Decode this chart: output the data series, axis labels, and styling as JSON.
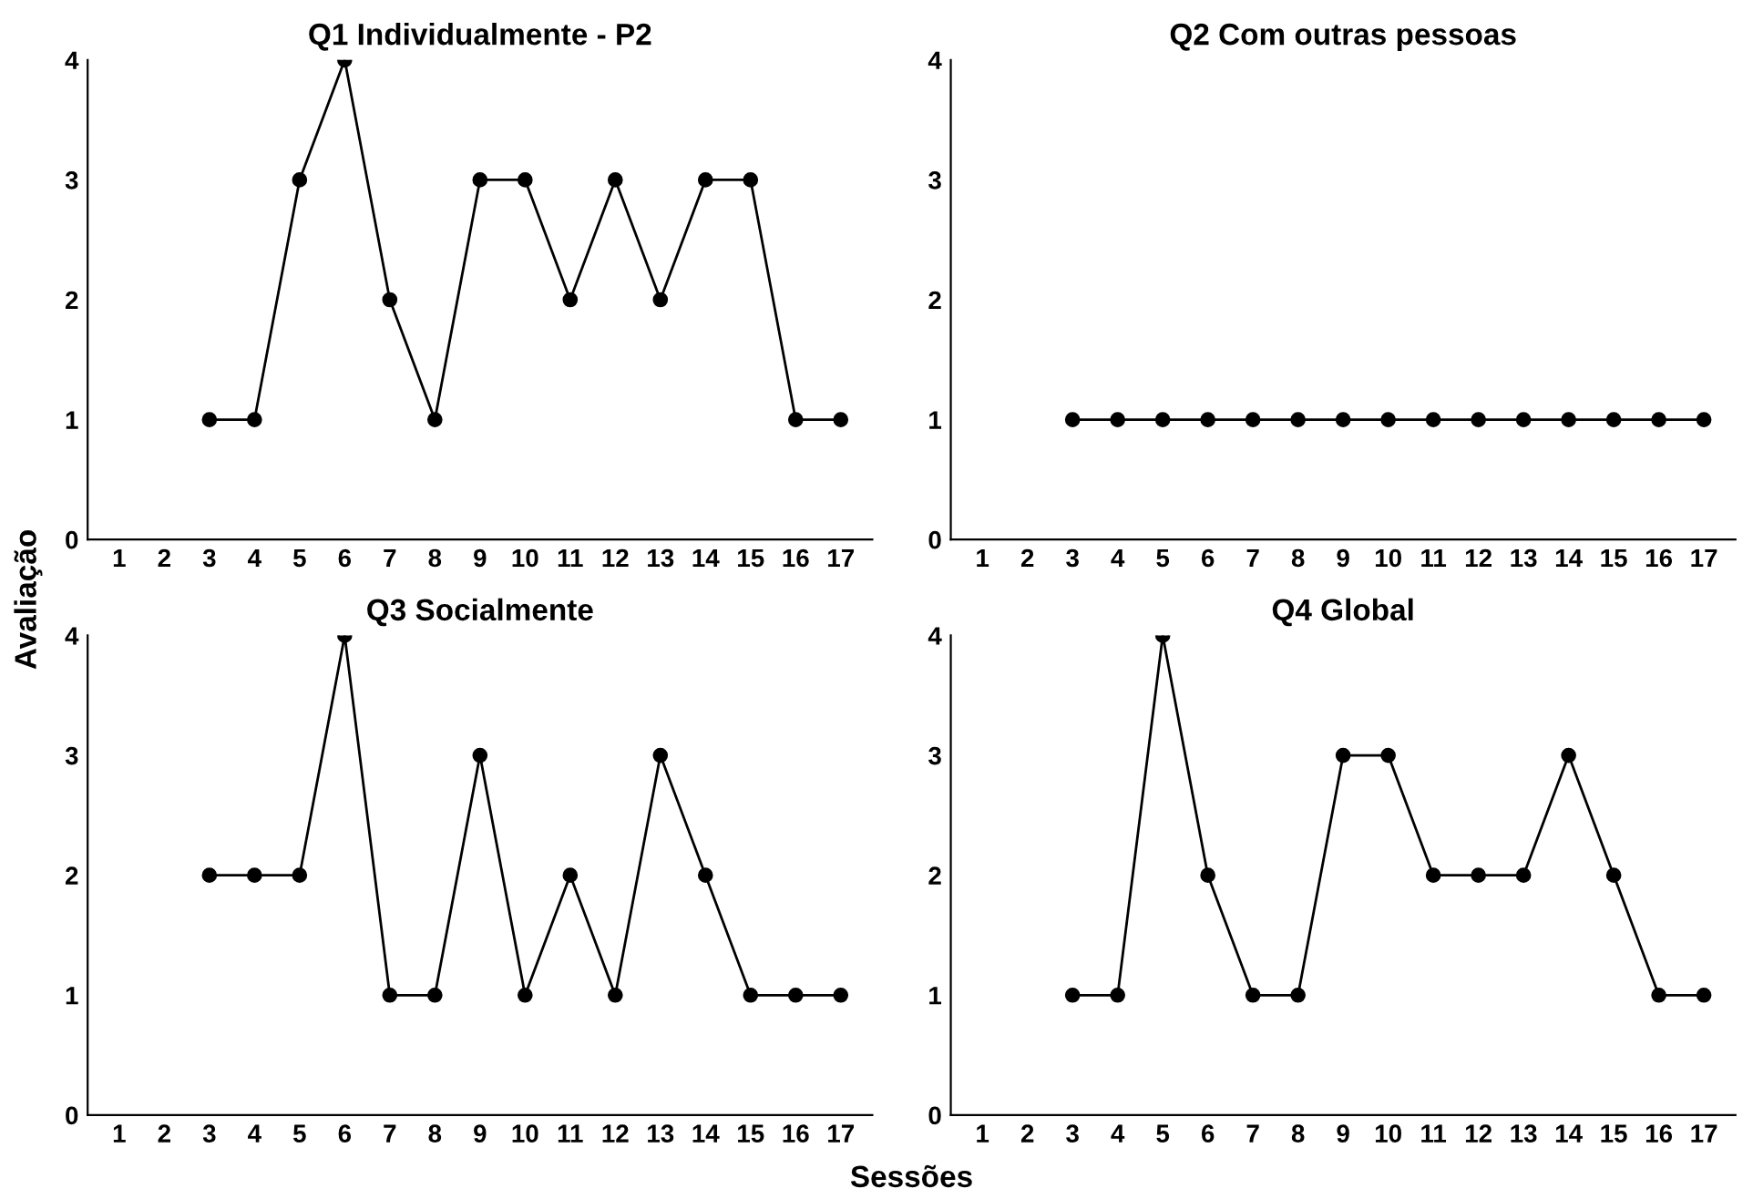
{
  "chart_data": [
    {
      "type": "line",
      "title": "Q1 Individualmente - P2",
      "categories": [
        "1",
        "2",
        "3",
        "4",
        "5",
        "6",
        "7",
        "8",
        "9",
        "10",
        "11",
        "12",
        "13",
        "14",
        "15",
        "16",
        "17"
      ],
      "series": [
        {
          "color": "#000000",
          "values": [
            null,
            null,
            1,
            1,
            3,
            4,
            2,
            1,
            3,
            3,
            2,
            3,
            2,
            3,
            3,
            1,
            1
          ]
        }
      ],
      "ylim": [
        0,
        4
      ],
      "yticks": [
        0,
        1,
        2,
        3,
        4
      ],
      "grid": false,
      "legend": false,
      "marker": "circle",
      "line_style": "solid"
    },
    {
      "type": "line",
      "title": "Q2 Com outras pessoas",
      "categories": [
        "1",
        "2",
        "3",
        "4",
        "5",
        "6",
        "7",
        "8",
        "9",
        "10",
        "11",
        "12",
        "13",
        "14",
        "15",
        "16",
        "17"
      ],
      "series": [
        {
          "color": "#000000",
          "values": [
            null,
            null,
            1,
            1,
            1,
            1,
            1,
            1,
            1,
            1,
            1,
            1,
            1,
            1,
            1,
            1,
            1
          ]
        }
      ],
      "ylim": [
        0,
        4
      ],
      "yticks": [
        0,
        1,
        2,
        3,
        4
      ],
      "grid": false,
      "legend": false,
      "marker": "circle",
      "line_style": "solid"
    },
    {
      "type": "line",
      "title": "Q3 Socialmente",
      "ylabel": "Avaliação",
      "categories": [
        "1",
        "2",
        "3",
        "4",
        "5",
        "6",
        "7",
        "8",
        "9",
        "10",
        "11",
        "12",
        "13",
        "14",
        "15",
        "16",
        "17"
      ],
      "series": [
        {
          "color": "#000000",
          "values": [
            null,
            null,
            2,
            2,
            2,
            4,
            1,
            1,
            3,
            1,
            2,
            1,
            3,
            2,
            1,
            1,
            1
          ]
        }
      ],
      "ylim": [
        0,
        4
      ],
      "yticks": [
        0,
        1,
        2,
        3,
        4
      ],
      "grid": false,
      "legend": false,
      "marker": "circle",
      "line_style": "solid"
    },
    {
      "type": "line",
      "title": "Q4 Global",
      "xlabel": "Sessões",
      "categories": [
        "1",
        "2",
        "3",
        "4",
        "5",
        "6",
        "7",
        "8",
        "9",
        "10",
        "11",
        "12",
        "13",
        "14",
        "15",
        "16",
        "17"
      ],
      "series": [
        {
          "color": "#000000",
          "values": [
            null,
            null,
            1,
            1,
            4,
            2,
            1,
            1,
            3,
            3,
            2,
            2,
            2,
            3,
            2,
            1,
            1
          ]
        }
      ],
      "ylim": [
        0,
        4
      ],
      "yticks": [
        0,
        1,
        2,
        3,
        4
      ],
      "grid": false,
      "legend": false,
      "marker": "circle",
      "line_style": "solid"
    }
  ]
}
